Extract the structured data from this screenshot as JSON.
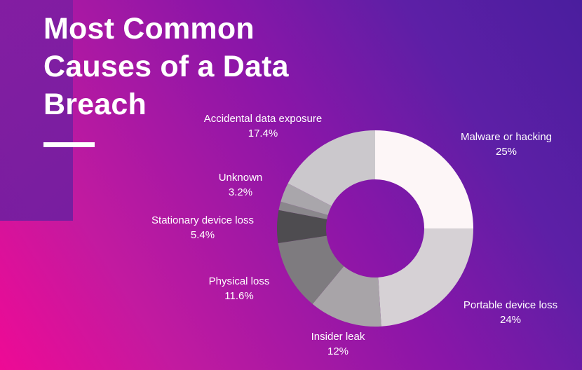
{
  "title": "Most Common Causes of a Data Breach",
  "colors": {
    "bg_start": "#ee0a95",
    "bg_end": "#4a1e9e",
    "text": "#ffffff"
  },
  "chart_data": {
    "type": "pie",
    "variant": "donut",
    "title": "Most Common Causes of a Data Breach",
    "start": "12 o'clock",
    "direction": "clockwise",
    "slices": [
      {
        "label": "Malware or hacking",
        "value": 25,
        "value_label": "25%",
        "color": "#fdf6f7"
      },
      {
        "label": "Portable device loss",
        "value": 24,
        "value_label": "24%",
        "color": "#d6d1d5"
      },
      {
        "label": "Insider leak",
        "value": 12,
        "value_label": "12%",
        "color": "#a8a4a8"
      },
      {
        "label": "Physical loss",
        "value": 11.6,
        "value_label": "11.6%",
        "color": "#7e7b7f"
      },
      {
        "label": "Stationary device loss",
        "value": 5.4,
        "value_label": "5.4%",
        "color": "#4e4c50"
      },
      {
        "label": "Unknown",
        "value": 1.4,
        "value_label": "",
        "color": "#8a878c"
      },
      {
        "label": "Unknown",
        "value": 3.2,
        "value_label": "3.2%",
        "color": "#a9a6ab"
      },
      {
        "label": "Accidental data exposure",
        "value": 17.4,
        "value_label": "17.4%",
        "color": "#cbc8cc"
      }
    ]
  }
}
